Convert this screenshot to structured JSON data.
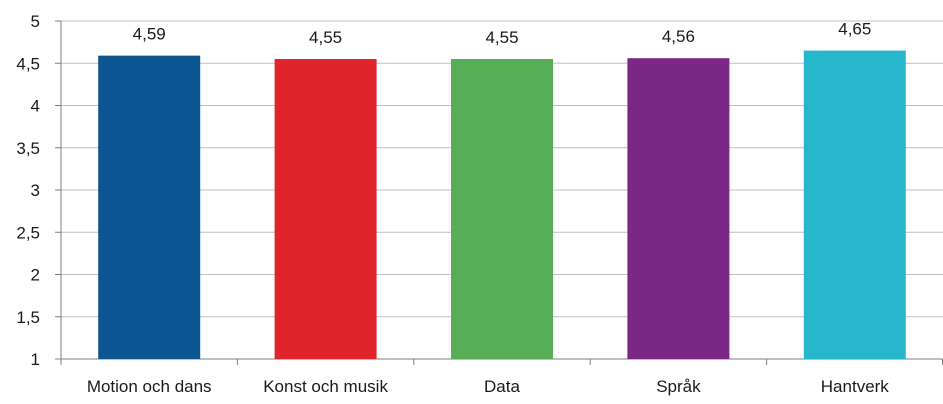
{
  "chart_data": {
    "type": "bar",
    "categories": [
      "Motion och dans",
      "Konst och musik",
      "Data",
      "Språk",
      "Hantverk"
    ],
    "values": [
      4.59,
      4.55,
      4.55,
      4.56,
      4.65
    ],
    "value_labels": [
      "4,59",
      "4,55",
      "4,55",
      "4,56",
      "4,65"
    ],
    "colors": [
      "#0b5592",
      "#e0242b",
      "#58ad57",
      "#7a2785",
      "#27b7cc"
    ],
    "ylim": [
      1,
      5
    ],
    "yticks": [
      1,
      1.5,
      2,
      2.5,
      3,
      3.5,
      4,
      4.5,
      5
    ],
    "ytick_labels": [
      "1",
      "1,5",
      "2",
      "2,5",
      "3",
      "3,5",
      "4",
      "4,5",
      "5"
    ],
    "grid": true,
    "grid_color": "#bfbfbf",
    "axis_color": "#7f7f7f",
    "title": "",
    "xlabel": "",
    "ylabel": ""
  }
}
